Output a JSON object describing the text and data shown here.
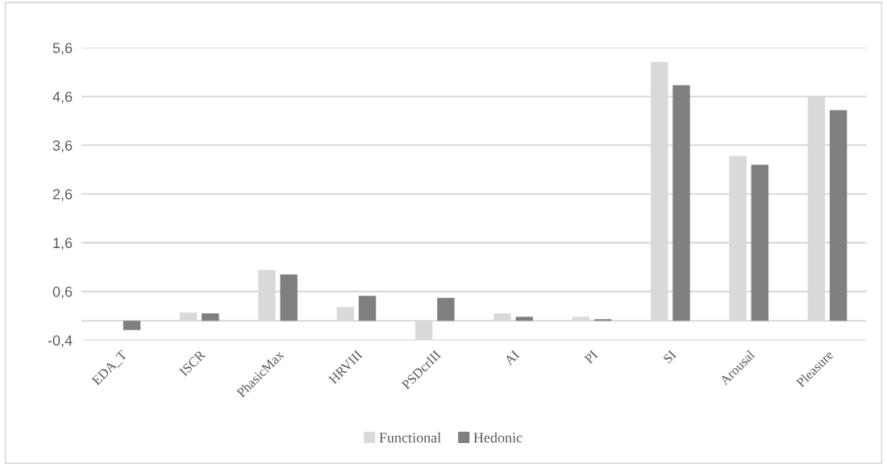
{
  "chart_data": {
    "type": "bar",
    "categories": [
      "EDA_T",
      "ISCR",
      "PhasicMax",
      "HRVIII",
      "PSDcrIII",
      "AI",
      "PI",
      "SI",
      "Arousal",
      "Pleasure"
    ],
    "series": [
      {
        "name": "Functional",
        "color": "#d9d9d9",
        "values": [
          0,
          0.17,
          1.04,
          0.28,
          -0.39,
          0.15,
          0.08,
          5.31,
          3.38,
          4.6
        ]
      },
      {
        "name": "Hedonic",
        "color": "#7f7f7f",
        "values": [
          -0.19,
          0.15,
          0.95,
          0.51,
          0.47,
          0.08,
          0.03,
          4.83,
          3.2,
          4.32
        ]
      }
    ],
    "ylim": [
      -0.4,
      5.6
    ],
    "yticks": [
      {
        "value": -0.4,
        "label": "-0,4"
      },
      {
        "value": 0.6,
        "label": "0,6"
      },
      {
        "value": 1.6,
        "label": "1,6"
      },
      {
        "value": 2.6,
        "label": "2,6"
      },
      {
        "value": 3.6,
        "label": "3,6"
      },
      {
        "value": 4.6,
        "label": "4,6"
      },
      {
        "value": 5.6,
        "label": "5,6"
      }
    ],
    "ref_lines": [
      {
        "axis": "y",
        "value": 0,
        "color": "#d9d9d9"
      }
    ],
    "grid": "y",
    "legend": "bottom"
  }
}
